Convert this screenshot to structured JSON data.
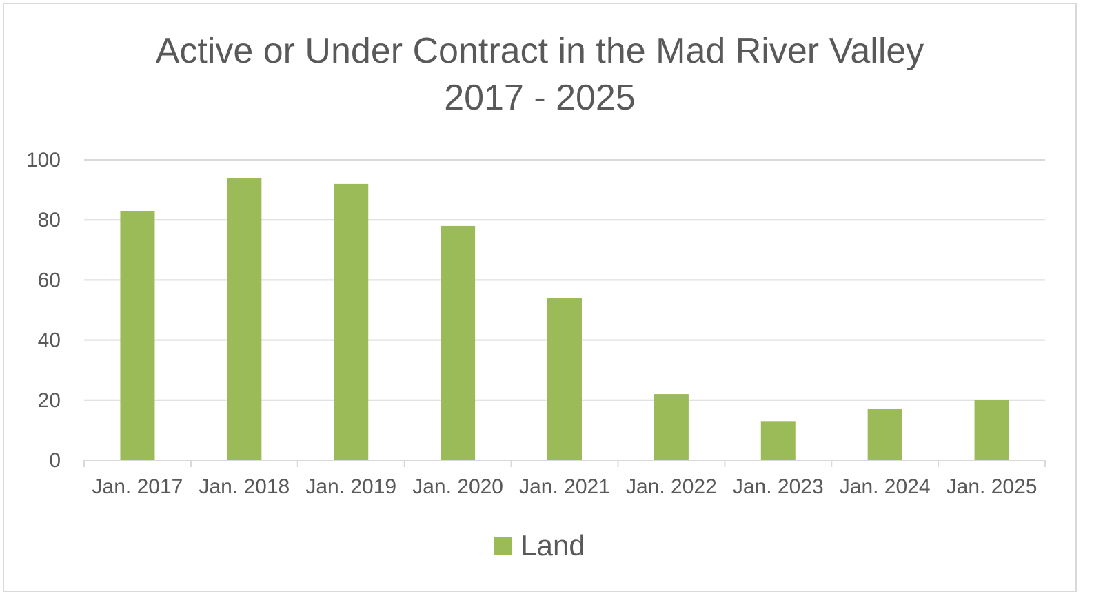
{
  "chart_data": {
    "type": "bar",
    "title": "Active or Under Contract in the Mad River Valley",
    "subtitle": "2017 - 2025",
    "xlabel": "",
    "ylabel": "",
    "categories": [
      "Jan. 2017",
      "Jan. 2018",
      "Jan. 2019",
      "Jan. 2020",
      "Jan. 2021",
      "Jan. 2022",
      "Jan. 2023",
      "Jan. 2024",
      "Jan. 2025"
    ],
    "series": [
      {
        "name": "Land",
        "color": "#9bbb59",
        "values": [
          83,
          94,
          92,
          78,
          54,
          22,
          13,
          17,
          20
        ]
      }
    ],
    "ylim": [
      0,
      100
    ],
    "yticks": [
      0,
      20,
      40,
      60,
      80,
      100
    ],
    "grid": true,
    "legend": "bottom-center"
  }
}
